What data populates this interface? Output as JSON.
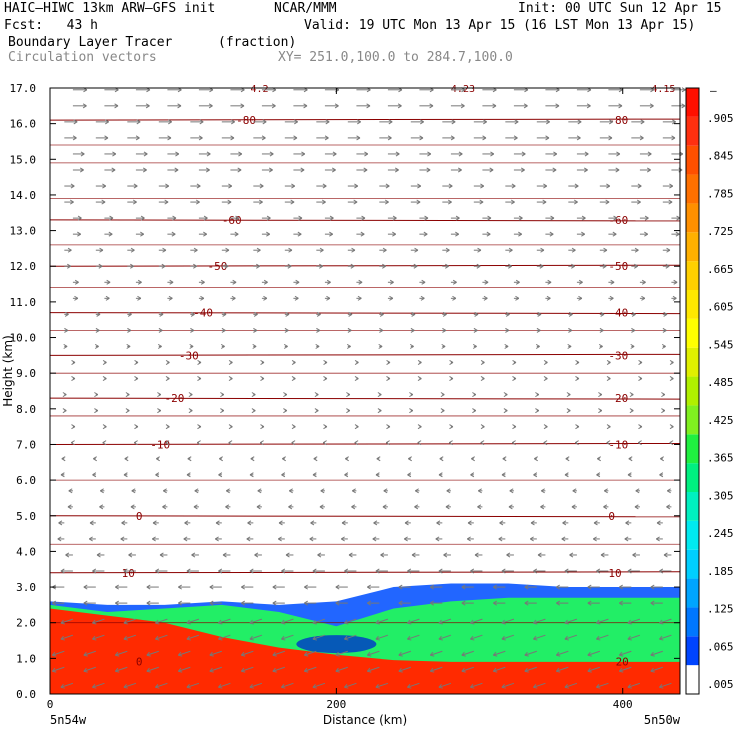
{
  "header": {
    "line1_left": "HAIC–HIWC 13km ARW–GFS init",
    "line1_mid": "NCAR/MMM",
    "line1_right": "Init: 00 UTC Sun 12 Apr 15",
    "line2_left": "Fcst:   43 h",
    "line2_right": "Valid: 19 UTC Mon 13 Apr 15 (16 LST Mon 13 Apr 15)",
    "line3_left": "Boundary Layer Tracer",
    "line3_mid": "(fraction)",
    "line4_left": "Circulation vectors",
    "line4_mid": "XY= 251.0,100.0 to 284.7,100.0"
  },
  "chart_data": {
    "type": "heatmap",
    "title": "Boundary Layer Tracer",
    "units": "(fraction)",
    "ylabel": "Height (km)",
    "xlabel": "Distance (km)",
    "x_ticks": [
      0,
      200,
      400
    ],
    "x_end_labels": {
      "left": "5n54w",
      "right": "5n50w"
    },
    "xlim": [
      0,
      440
    ],
    "ylim": [
      0,
      17
    ],
    "y_ticks": [
      0.0,
      1.0,
      2.0,
      3.0,
      4.0,
      5.0,
      6.0,
      7.0,
      8.0,
      9.0,
      10.0,
      11.0,
      12.0,
      13.0,
      14.0,
      15.0,
      16.0,
      17.0
    ],
    "colorbar": {
      "labels": [
        ".005",
        ".065",
        ".125",
        ".185",
        ".245",
        ".305",
        ".365",
        ".425",
        ".485",
        ".545",
        ".605",
        ".665",
        ".725",
        ".785",
        ".845",
        ".905"
      ],
      "colors": [
        "#ffffff",
        "#0044ff",
        "#0077ff",
        "#00a5ff",
        "#00cfff",
        "#00eaf0",
        "#00f0c0",
        "#00f080",
        "#20f040",
        "#80f020",
        "#b0f000",
        "#e0f000",
        "#ffff00",
        "#ffe800",
        "#ffd000",
        "#ffb000",
        "#ff9000",
        "#ff7000",
        "#ff5000",
        "#ff3010",
        "#ff1000"
      ]
    },
    "tracer_layers": [
      {
        "label": "red",
        "color": "#ff2a00",
        "top_km": [
          2.4,
          2.2,
          2.0,
          1.6,
          1.3,
          1.1,
          0.95,
          0.9,
          0.9,
          0.9,
          0.9,
          0.9
        ]
      },
      {
        "label": "green",
        "color": "#22ee66",
        "top_km": [
          2.5,
          2.3,
          2.4,
          2.5,
          2.3,
          1.9,
          2.4,
          2.6,
          2.7,
          2.7,
          2.7,
          2.7
        ]
      },
      {
        "label": "blue",
        "color": "#2266ff",
        "top_km": [
          2.6,
          2.5,
          2.5,
          2.6,
          2.5,
          2.6,
          3.0,
          3.1,
          3.1,
          3.0,
          3.0,
          3.0
        ]
      }
    ],
    "tracer_x_km": [
      0,
      40,
      80,
      120,
      160,
      200,
      240,
      280,
      320,
      360,
      400,
      440
    ],
    "isotherms_degC": [
      {
        "value": "10",
        "y_km": 3.4
      },
      {
        "value": "0",
        "y_km": 5.0
      },
      {
        "value": "-10",
        "y_km": 7.0
      },
      {
        "value": "-20",
        "y_km": 8.3
      },
      {
        "value": "-30",
        "y_km": 9.5
      },
      {
        "value": "-40",
        "y_km": 10.7
      },
      {
        "value": "-50",
        "y_km": 12.0
      },
      {
        "value": "-60",
        "y_km": 13.3
      },
      {
        "value": "-80",
        "y_km": 16.1
      }
    ],
    "bottom_labels": [
      "20",
      "0"
    ],
    "top_annotations": [
      "4.2",
      "4.23",
      "4.15"
    ]
  }
}
